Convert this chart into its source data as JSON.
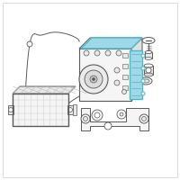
{
  "bg_color": "#ffffff",
  "border_color": "#cccccc",
  "line_color": "#5a5a5a",
  "highlight_color": "#4ab8c8",
  "highlight_fill": "#a0d8e8",
  "part_fill": "#f5f5f5",
  "shadow_fill": "#e8e8e8"
}
